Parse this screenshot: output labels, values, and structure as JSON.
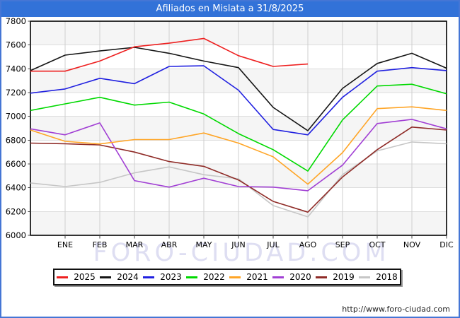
{
  "title": "Afiliados en Mislata a 31/8/2025",
  "watermark": "FORO-CIUDAD.COM",
  "footer": {
    "url": "http://www.foro-ciudad.com"
  },
  "colors": {
    "titlebar_bg": "#3272d8",
    "frame_border": "#4576d5",
    "band_gray": "#f5f5f5",
    "band_white": "#ffffff",
    "grid_vertical": "#cfcfcf",
    "grid_horizontal": "#dddddd",
    "axis_frame": "#000000",
    "tick": "#444444",
    "axis_text": "#000000"
  },
  "chart_data": {
    "type": "line",
    "title": "Afiliados en Mislata a 31/8/2025",
    "xlabel": "",
    "ylabel": "",
    "ylim": [
      6000,
      7800
    ],
    "y_ticks": [
      6000,
      6200,
      6400,
      6600,
      6800,
      7000,
      7200,
      7400,
      7600,
      7800
    ],
    "x_labels": [
      "ENE",
      "FEB",
      "MAR",
      "ABR",
      "MAY",
      "JUN",
      "JUL",
      "AGO",
      "SEP",
      "OCT",
      "NOV",
      "DIC"
    ],
    "grid": true,
    "legend_position": "bottom",
    "note": "First value of each series is plotted at the left axis edge; the remaining values fall on the ENE..DIC gridlines. 2025 data ends in AGO.",
    "series": [
      {
        "name": "2025",
        "color": "#ee2020",
        "values": [
          7380,
          7380,
          7465,
          7585,
          7615,
          7655,
          7510,
          7420,
          7440
        ]
      },
      {
        "name": "2024",
        "color": "#151515",
        "values": [
          7385,
          7515,
          7550,
          7580,
          7530,
          7465,
          7410,
          7075,
          6880,
          7235,
          7445,
          7530,
          7405
        ]
      },
      {
        "name": "2023",
        "color": "#2020e0",
        "values": [
          7195,
          7230,
          7320,
          7275,
          7420,
          7425,
          7220,
          6890,
          6845,
          7160,
          7380,
          7410,
          7385
        ]
      },
      {
        "name": "2022",
        "color": "#00d900",
        "values": [
          7050,
          7105,
          7160,
          7095,
          7120,
          7020,
          6855,
          6720,
          6540,
          6970,
          7255,
          7270,
          7190
        ]
      },
      {
        "name": "2021",
        "color": "#ffa526",
        "values": [
          6885,
          6790,
          6768,
          6805,
          6805,
          6860,
          6775,
          6660,
          6430,
          6695,
          7065,
          7080,
          7050
        ]
      },
      {
        "name": "2020",
        "color": "#a13fd4",
        "values": [
          6895,
          6845,
          6945,
          6460,
          6405,
          6480,
          6410,
          6405,
          6375,
          6590,
          6940,
          6975,
          6895
        ]
      },
      {
        "name": "2019",
        "color": "#8f2b27",
        "values": [
          6775,
          6770,
          6760,
          6700,
          6620,
          6580,
          6465,
          6285,
          6195,
          6490,
          6720,
          6910,
          6885
        ]
      },
      {
        "name": "2018",
        "color": "#c6c6c6",
        "values": [
          6440,
          6410,
          6445,
          6525,
          6575,
          6510,
          6475,
          6250,
          6155,
          6510,
          6710,
          6785,
          6770
        ]
      }
    ]
  }
}
